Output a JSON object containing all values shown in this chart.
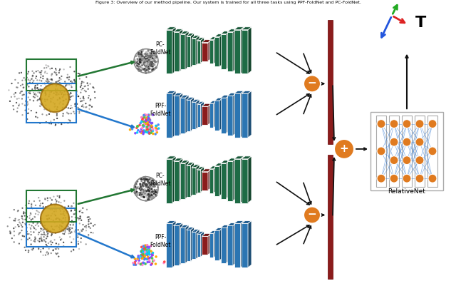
{
  "caption": "Figure 3: Overview of our method pipeline. Our system is trained for all three tasks using PPF-FoldNet and PC-FoldNet.",
  "bg_color": "#ffffff",
  "blue": "#2b75b2",
  "dark_green": "#1e6b45",
  "dark_red": "#8b1c1c",
  "orange": "#e07b20",
  "black": "#111111",
  "nn_blue": "#3a7fd4"
}
